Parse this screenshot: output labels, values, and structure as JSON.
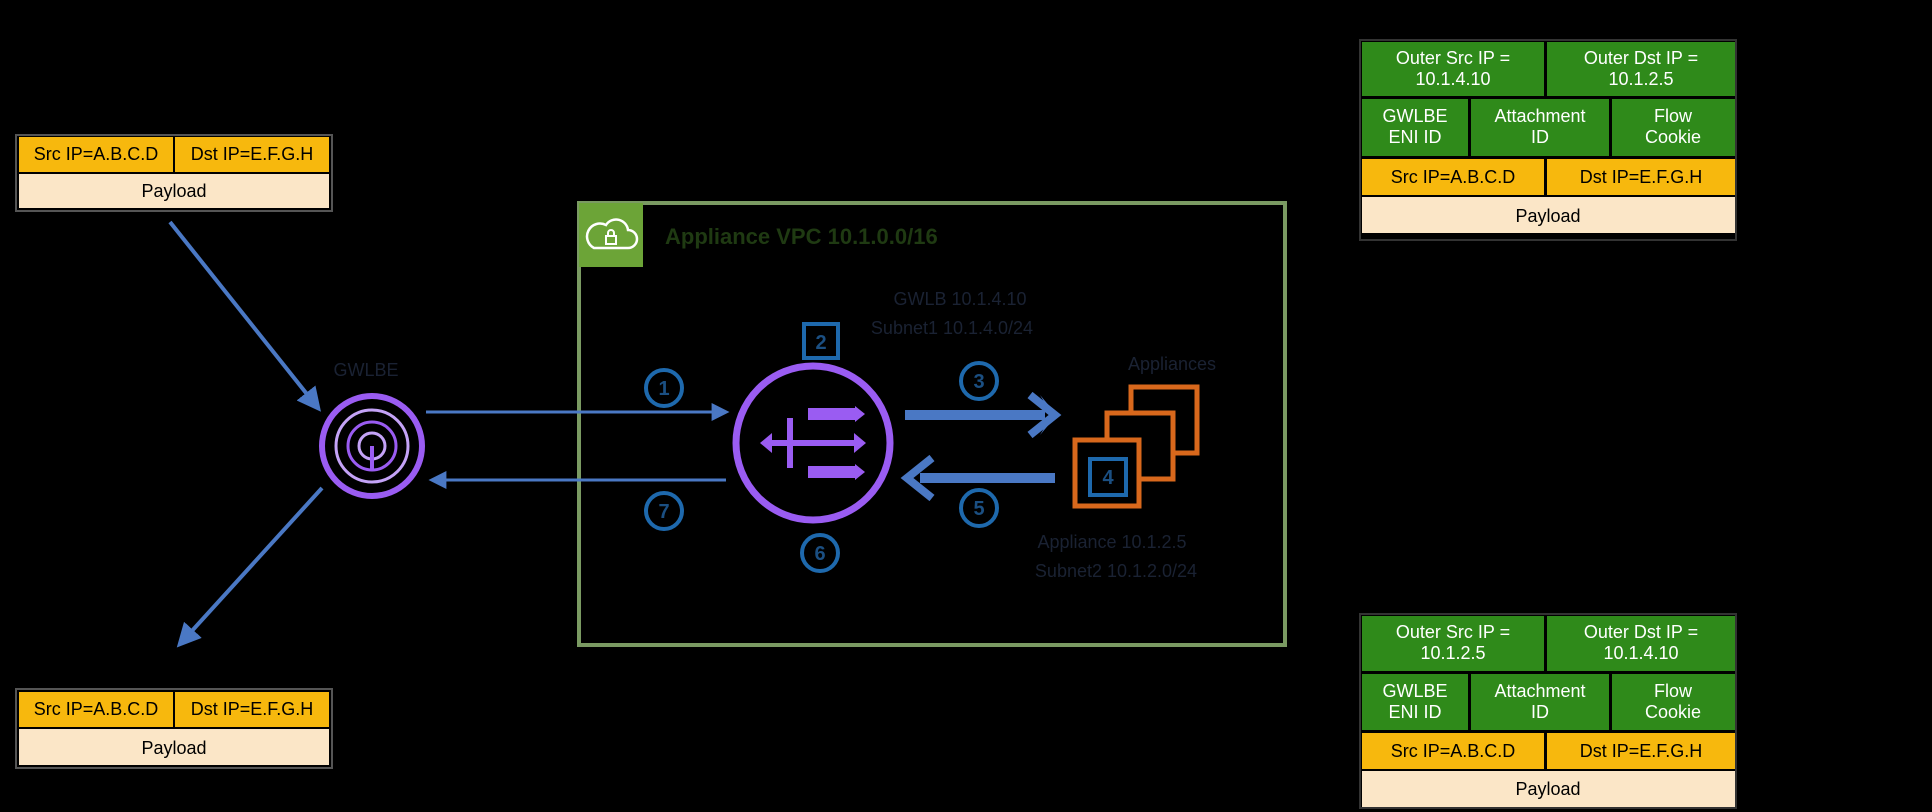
{
  "colors": {
    "background": "#000000",
    "header_green": "#2f8a1a",
    "ip_yellow": "#f7b80d",
    "payload_beige": "#fbe6c7",
    "arrow_blue": "#4a78c4",
    "gwlb_purple": "#9a5cf2",
    "vpc_border": "#7a9a62",
    "vpc_icon_bg": "#6ca437",
    "instances_orange": "#d8681c",
    "step_blue": "#1e69ad"
  },
  "source_packet": {
    "src": "Src IP=A.B.C.D",
    "dst": "Dst IP=E.F.G.H",
    "payload": "Payload"
  },
  "return_packet": {
    "src": "Src IP=A.B.C.D",
    "dst": "Dst IP=E.F.G.H",
    "payload": "Payload"
  },
  "encap_packet_top": {
    "outer_src": "Outer Src IP =\n10.1.4.10",
    "outer_dst": "Outer Dst IP =\n10.1.2.5",
    "gwlbe": "GWLBE\nENI ID",
    "attachment": "Attachment\nID",
    "cookie": "Flow\nCookie",
    "src": "Src IP=A.B.C.D",
    "dst": "Dst IP=E.F.G.H",
    "payload": "Payload"
  },
  "encap_packet_bottom": {
    "outer_src": "Outer Src IP =\n10.1.2.5",
    "outer_dst": "Outer Dst IP =\n10.1.4.10",
    "gwlbe": "GWLBE\nENI ID",
    "attachment": "Attachment\nID",
    "cookie": "Flow\nCookie",
    "src": "Src IP=A.B.C.D",
    "dst": "Dst IP=E.F.G.H",
    "payload": "Payload"
  },
  "vpc": {
    "title": "Appliance VPC 10.1.0.0/16",
    "icon": "vpc-lock-cloud-icon"
  },
  "gwlbe": {
    "label": "GWLBE",
    "icon": "gwlb-endpoint-icon"
  },
  "gwlb": {
    "label_line1": "GWLB 10.1.4.10",
    "label_line2": "Subnet1 10.1.4.0/24",
    "icon": "gateway-load-balancer-icon"
  },
  "appliances": {
    "label": "Appliances",
    "ip_line1": "Appliance 10.1.2.5",
    "ip_line2": "Subnet2 10.1.2.0/24",
    "icon": "ec2-instances-icon"
  },
  "steps": [
    "1",
    "2",
    "3",
    "4",
    "5",
    "6",
    "7"
  ]
}
